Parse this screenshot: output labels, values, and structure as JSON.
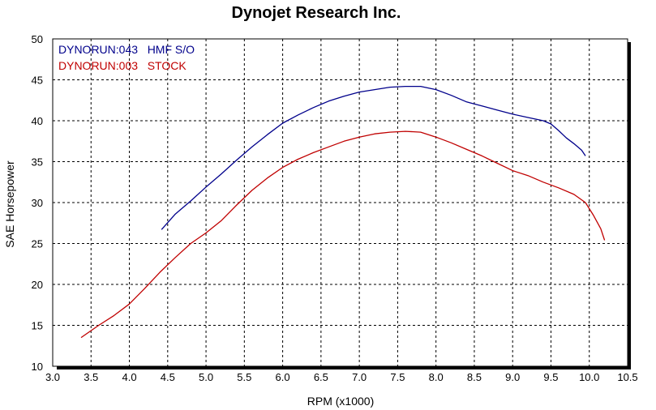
{
  "chart_data": {
    "type": "line",
    "title": "Dynojet Research Inc.",
    "xlabel": "RPM (x1000)",
    "ylabel": "SAE Horsepower",
    "xlim": [
      3.0,
      10.5
    ],
    "ylim": [
      10,
      50
    ],
    "xticks": [
      "3.0",
      "3.5",
      "4.0",
      "4.5",
      "5.0",
      "5.5",
      "6.0",
      "6.5",
      "7.0",
      "7.5",
      "8.0",
      "8.5",
      "9.0",
      "9.5",
      "10.0",
      "10.5"
    ],
    "yticks": [
      "10",
      "15",
      "20",
      "25",
      "30",
      "35",
      "40",
      "45",
      "50"
    ],
    "grid": true,
    "legend_position": "top-left",
    "series": [
      {
        "name": "DYNORUN:043   HMF S/O",
        "color": "#00008b",
        "x": [
          4.42,
          4.6,
          4.8,
          5.0,
          5.2,
          5.4,
          5.6,
          5.8,
          6.0,
          6.2,
          6.4,
          6.6,
          6.8,
          7.0,
          7.2,
          7.4,
          7.6,
          7.8,
          8.0,
          8.2,
          8.4,
          8.6,
          8.8,
          9.0,
          9.2,
          9.4,
          9.5,
          9.6,
          9.7,
          9.8,
          9.9,
          9.95
        ],
        "y": [
          26.7,
          28.6,
          30.2,
          31.9,
          33.5,
          35.2,
          36.8,
          38.3,
          39.7,
          40.7,
          41.6,
          42.4,
          43.0,
          43.5,
          43.8,
          44.1,
          44.2,
          44.2,
          43.8,
          43.1,
          42.3,
          41.8,
          41.3,
          40.8,
          40.4,
          40.0,
          39.6,
          38.8,
          37.9,
          37.2,
          36.4,
          35.7
        ]
      },
      {
        "name": "DYNORUN:003   STOCK",
        "color": "#c00000",
        "x": [
          3.37,
          3.6,
          3.8,
          4.0,
          4.2,
          4.4,
          4.6,
          4.8,
          5.0,
          5.2,
          5.4,
          5.6,
          5.8,
          6.0,
          6.2,
          6.4,
          6.6,
          6.8,
          7.0,
          7.2,
          7.4,
          7.6,
          7.8,
          8.0,
          8.2,
          8.4,
          8.6,
          8.8,
          9.0,
          9.2,
          9.4,
          9.6,
          9.8,
          9.95,
          10.05,
          10.15,
          10.2
        ],
        "y": [
          13.5,
          15.0,
          16.2,
          17.6,
          19.5,
          21.5,
          23.3,
          25.0,
          26.3,
          27.8,
          29.7,
          31.5,
          33.0,
          34.3,
          35.3,
          36.1,
          36.8,
          37.5,
          38.0,
          38.4,
          38.6,
          38.7,
          38.6,
          38.0,
          37.3,
          36.5,
          35.7,
          34.8,
          33.9,
          33.3,
          32.5,
          31.8,
          31.0,
          30.0,
          28.5,
          26.8,
          25.4
        ]
      }
    ]
  }
}
